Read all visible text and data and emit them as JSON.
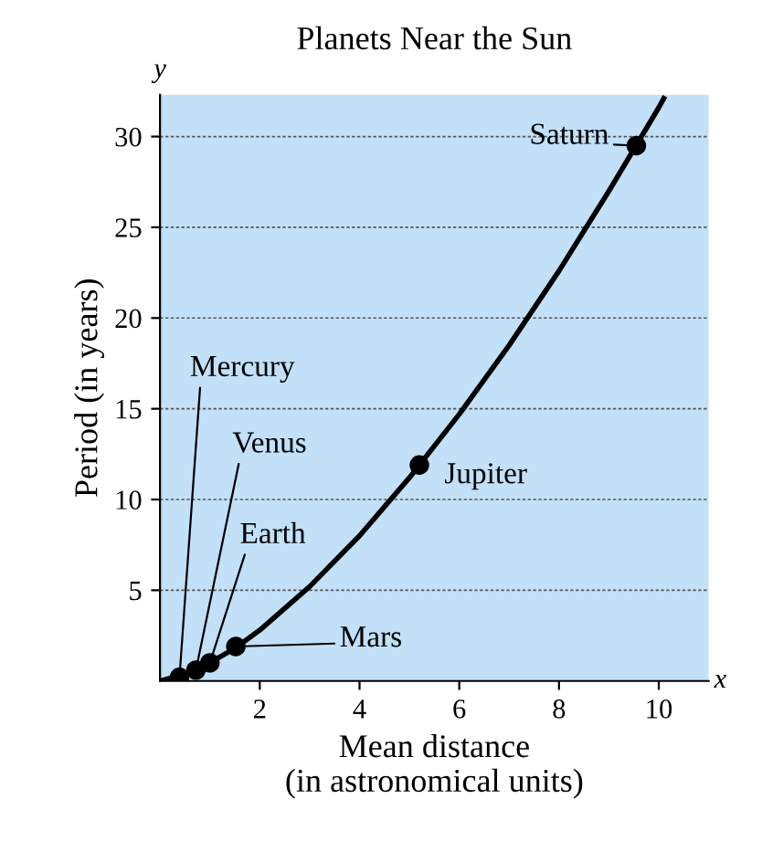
{
  "chart_data": {
    "type": "line",
    "title": "Planets Near the Sun",
    "xlabel": "Mean distance\n(in astronomical units)",
    "ylabel": "Period (in years)",
    "xlim": [
      0,
      11
    ],
    "ylim": [
      0,
      32.3
    ],
    "xticks": [
      2,
      4,
      6,
      8,
      10
    ],
    "yticks": [
      5,
      10,
      15,
      20,
      25,
      30
    ],
    "grid": "y",
    "series": [
      {
        "color": "#000000",
        "marker": "none",
        "x": [
          0,
          0.5,
          1,
          1.5,
          2,
          3,
          4,
          5,
          6,
          7,
          8,
          9,
          10,
          10.1
        ],
        "values": [
          0,
          0.4,
          1,
          1.8,
          2.8,
          5.2,
          8,
          11.2,
          14.7,
          18.5,
          22.6,
          27,
          31.6,
          32.1
        ]
      },
      {
        "type": "scatter",
        "color": "#000000",
        "marker": "circle",
        "x": [
          0.39,
          0.72,
          1,
          1.52,
          5.2,
          9.55
        ],
        "values": [
          0.2,
          0.6,
          1,
          1.9,
          11.9,
          29.5
        ]
      }
    ],
    "annotations": [
      {
        "text": "Mercury",
        "x": 0.39,
        "y": 0.2
      },
      {
        "text": "Venus",
        "x": 0.72,
        "y": 0.6
      },
      {
        "text": "Earth",
        "x": 1,
        "y": 1
      },
      "Mars",
      {
        "text": "Jupiter",
        "x": 5.2,
        "y": 11.9
      },
      {
        "text": "Saturn",
        "x": 9.55,
        "y": 29.5
      },
      "x",
      "y"
    ]
  }
}
